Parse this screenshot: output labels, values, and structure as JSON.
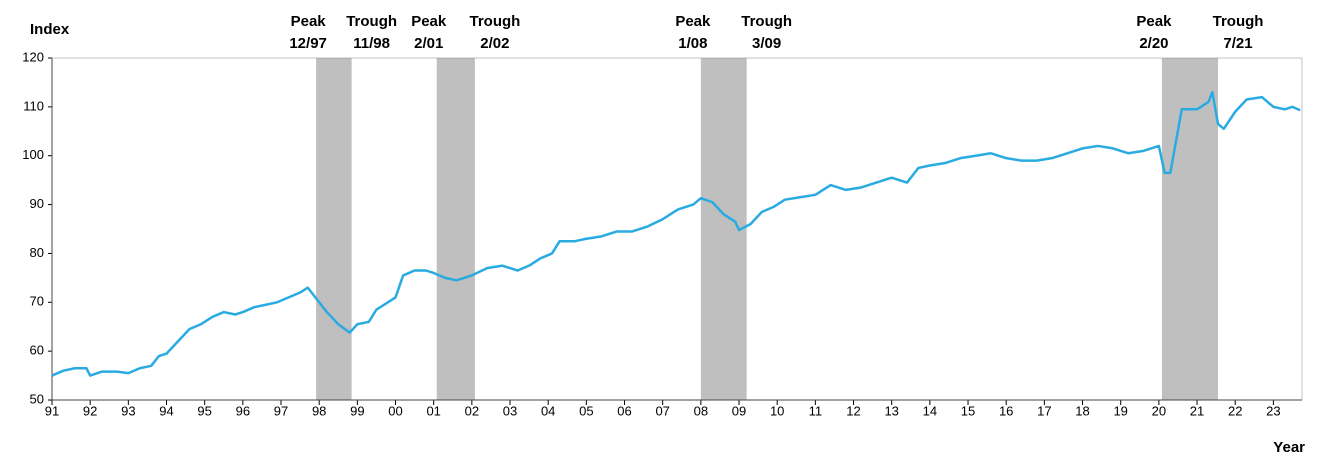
{
  "chart_data": {
    "type": "line",
    "y_label": "Index",
    "x_label": "Year",
    "xlim": [
      1991,
      2023.75
    ],
    "ylim": [
      50,
      120
    ],
    "yticks": [
      50,
      60,
      70,
      80,
      90,
      100,
      110,
      120
    ],
    "xticks": [
      {
        "value": 1991,
        "label": "91"
      },
      {
        "value": 1992,
        "label": "92"
      },
      {
        "value": 1993,
        "label": "93"
      },
      {
        "value": 1994,
        "label": "94"
      },
      {
        "value": 1995,
        "label": "95"
      },
      {
        "value": 1996,
        "label": "96"
      },
      {
        "value": 1997,
        "label": "97"
      },
      {
        "value": 1998,
        "label": "98"
      },
      {
        "value": 1999,
        "label": "99"
      },
      {
        "value": 2000,
        "label": "00"
      },
      {
        "value": 2001,
        "label": "01"
      },
      {
        "value": 2002,
        "label": "02"
      },
      {
        "value": 2003,
        "label": "03"
      },
      {
        "value": 2004,
        "label": "04"
      },
      {
        "value": 2005,
        "label": "05"
      },
      {
        "value": 2006,
        "label": "06"
      },
      {
        "value": 2007,
        "label": "07"
      },
      {
        "value": 2008,
        "label": "08"
      },
      {
        "value": 2009,
        "label": "09"
      },
      {
        "value": 2010,
        "label": "10"
      },
      {
        "value": 2011,
        "label": "11"
      },
      {
        "value": 2012,
        "label": "12"
      },
      {
        "value": 2013,
        "label": "13"
      },
      {
        "value": 2014,
        "label": "14"
      },
      {
        "value": 2015,
        "label": "15"
      },
      {
        "value": 2016,
        "label": "16"
      },
      {
        "value": 2017,
        "label": "17"
      },
      {
        "value": 2018,
        "label": "18"
      },
      {
        "value": 2019,
        "label": "19"
      },
      {
        "value": 2020,
        "label": "20"
      },
      {
        "value": 2021,
        "label": "21"
      },
      {
        "value": 2022,
        "label": "22"
      },
      {
        "value": 2023,
        "label": "23"
      }
    ],
    "recession_color": "#bfbfbf",
    "recessions": [
      {
        "start": 1997.92,
        "end": 1998.85,
        "peak": "Peak",
        "peak_date": "12/97",
        "trough": "Trough",
        "trough_date": "11/98"
      },
      {
        "start": 2001.08,
        "end": 2002.08,
        "peak": "Peak",
        "peak_date": "2/01",
        "trough": "Trough",
        "trough_date": "2/02"
      },
      {
        "start": 2008.0,
        "end": 2009.2,
        "peak": "Peak",
        "peak_date": "1/08",
        "trough": "Trough",
        "trough_date": "3/09"
      },
      {
        "start": 2020.08,
        "end": 2021.55,
        "peak": "Peak",
        "peak_date": "2/20",
        "trough": "Trough",
        "trough_date": "7/21"
      }
    ],
    "x": [
      1991.0,
      1991.3,
      1991.6,
      1991.9,
      1992.0,
      1992.3,
      1992.7,
      1993.0,
      1993.3,
      1993.6,
      1993.8,
      1994.0,
      1994.3,
      1994.6,
      1994.9,
      1995.2,
      1995.5,
      1995.8,
      1996.0,
      1996.3,
      1996.6,
      1996.9,
      1997.2,
      1997.5,
      1997.7,
      1997.9,
      1998.2,
      1998.5,
      1998.8,
      1999.0,
      1999.3,
      1999.5,
      1999.8,
      2000.0,
      2000.2,
      2000.5,
      2000.8,
      2001.0,
      2001.3,
      2001.6,
      2002.0,
      2002.4,
      2002.8,
      2003.0,
      2003.2,
      2003.5,
      2003.8,
      2004.1,
      2004.3,
      2004.7,
      2005.0,
      2005.4,
      2005.8,
      2006.2,
      2006.6,
      2007.0,
      2007.4,
      2007.8,
      2008.0,
      2008.3,
      2008.6,
      2008.9,
      2009.0,
      2009.3,
      2009.6,
      2009.9,
      2010.2,
      2010.6,
      2011.0,
      2011.4,
      2011.8,
      2012.2,
      2012.6,
      2013.0,
      2013.4,
      2013.7,
      2014.0,
      2014.4,
      2014.8,
      2015.2,
      2015.6,
      2016.0,
      2016.4,
      2016.8,
      2017.2,
      2017.6,
      2018.0,
      2018.4,
      2018.8,
      2019.2,
      2019.6,
      2020.0,
      2020.15,
      2020.3,
      2020.45,
      2020.6,
      2021.0,
      2021.3,
      2021.4,
      2021.55,
      2021.7,
      2022.0,
      2022.3,
      2022.7,
      2023.0,
      2023.3,
      2023.5,
      2023.7
    ],
    "series": [
      {
        "color": "#29abe2",
        "values": [
          55,
          56,
          56.5,
          56.5,
          55,
          55.8,
          55.8,
          55.5,
          56.5,
          57,
          59,
          59.5,
          62,
          64.5,
          65.5,
          67,
          68,
          67.5,
          68,
          69,
          69.5,
          70,
          71,
          72,
          73,
          71,
          68,
          65.5,
          63.8,
          65.5,
          66,
          68.5,
          70,
          71,
          75.5,
          76.5,
          76.5,
          76,
          75,
          74.5,
          75.5,
          77,
          77.5,
          77,
          76.5,
          77.5,
          79,
          80,
          82.5,
          82.5,
          83,
          83.5,
          84.5,
          84.5,
          85.5,
          87,
          89,
          90,
          91.3,
          90.5,
          88,
          86.5,
          84.8,
          86,
          88.5,
          89.5,
          91,
          91.5,
          92,
          94,
          93,
          93.5,
          94.5,
          95.5,
          94.5,
          97.5,
          98,
          98.5,
          99.5,
          100,
          100.5,
          99.5,
          99,
          99,
          99.5,
          100.5,
          101.5,
          102,
          101.5,
          100.5,
          101,
          102,
          96.5,
          96.5,
          103,
          109.5,
          109.5,
          111,
          113,
          106.5,
          105.5,
          109,
          111.5,
          112,
          110,
          109.5,
          110,
          109.3
        ]
      }
    ]
  }
}
